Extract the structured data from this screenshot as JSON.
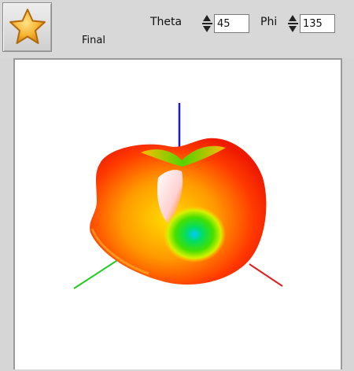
{
  "toolbar": {
    "final_label": "Final",
    "theta_label": "Theta",
    "theta_value": "45",
    "phi_label": "Phi",
    "phi_value": "135"
  },
  "icons": {
    "favorite": "star-icon"
  },
  "colors": {
    "x_axis": "#e02020",
    "y_axis": "#22cc22",
    "z_axis": "#1a1ad0"
  }
}
